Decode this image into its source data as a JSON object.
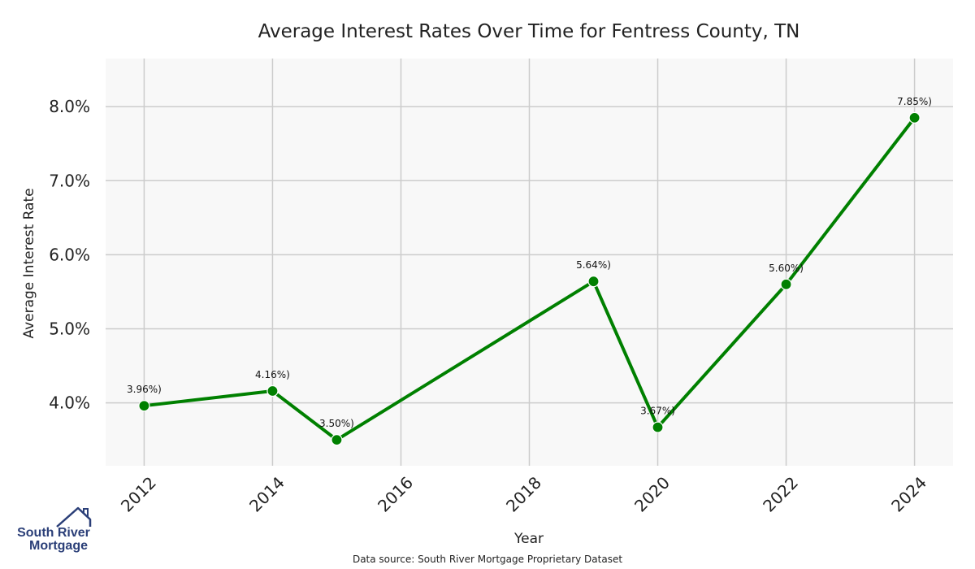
{
  "chart_data": {
    "type": "line",
    "title": "Average Interest Rates Over Time for Fentress County, TN",
    "xlabel": "Year",
    "ylabel": "Average Interest Rate",
    "x": [
      2012,
      2014,
      2015,
      2019,
      2020,
      2022,
      2024
    ],
    "series": [
      {
        "values": [
          3.96,
          4.16,
          3.5,
          5.64,
          3.67,
          5.6,
          7.85
        ],
        "labels": [
          "3.96%)",
          "4.16%)",
          "3.50%)",
          "5.64%)",
          "3.67%)",
          "5.60%)",
          "7.85%)"
        ],
        "color": "#008000"
      }
    ],
    "xticks": [
      "2012",
      "2014",
      "2016",
      "2018",
      "2020",
      "2022",
      "2024"
    ],
    "yticks": [
      "4.0%",
      "5.0%",
      "6.0%",
      "7.0%",
      "8.0%"
    ],
    "xlim": [
      2011.4,
      2024.6
    ],
    "ylim": [
      3.15,
      8.65
    ],
    "grid": true,
    "background": "#f8f8f8",
    "grid_color": "#cccccc"
  },
  "source_text": "Data source: South River Mortgage Proprietary Dataset",
  "logo": {
    "line1": "South River",
    "line2": "Mortgage",
    "color": "#2b3f78"
  }
}
